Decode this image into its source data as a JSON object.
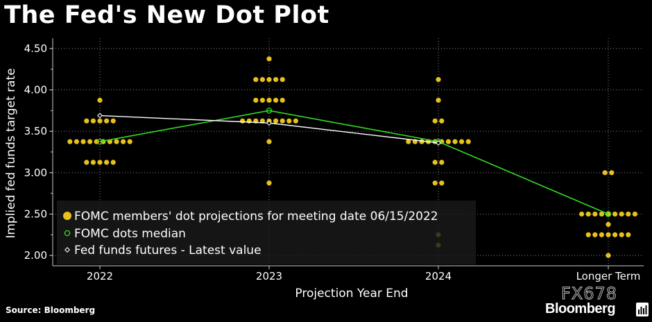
{
  "page": {
    "title": "The Fed's New Dot Plot",
    "source": "Source: Bloomberg",
    "watermark": "FX678",
    "brand": "Bloomberg",
    "brand_icon": "bloomberg-bars-icon"
  },
  "chart_data": {
    "type": "scatter",
    "title": "The Fed's New Dot Plot",
    "xlabel": "Projection Year End",
    "ylabel": "Implied fed funds target rate",
    "categories": [
      "2022",
      "2023",
      "2024",
      "Longer Term"
    ],
    "ylim": [
      1.875,
      4.625
    ],
    "yticks": [
      2.0,
      2.5,
      3.0,
      3.5,
      4.0,
      4.5
    ],
    "ytick_labels": [
      "2.00",
      "2.50",
      "3.00",
      "3.50",
      "4.00",
      "4.50"
    ],
    "grid": true,
    "legend_position": "bottom-left",
    "colors": {
      "dots": "#e8c21a",
      "dots_hidden": "#7a6a22",
      "median": "#33dd22",
      "futures": "#ffffff",
      "grid": "#888888",
      "axis": "#cccccc",
      "legend_bg": "#1a1a1a"
    },
    "series": [
      {
        "name": "FOMC members' dot projections for meeting date 06/15/2022",
        "kind": "dots",
        "points": [
          {
            "x": "2022",
            "y": 3.875,
            "count": 1
          },
          {
            "x": "2022",
            "y": 3.625,
            "count": 5
          },
          {
            "x": "2022",
            "y": 3.375,
            "count": 10
          },
          {
            "x": "2022",
            "y": 3.125,
            "count": 5
          },
          {
            "x": "2023",
            "y": 4.375,
            "count": 1
          },
          {
            "x": "2023",
            "y": 4.125,
            "count": 5
          },
          {
            "x": "2023",
            "y": 3.875,
            "count": 5
          },
          {
            "x": "2023",
            "y": 3.625,
            "count": 9
          },
          {
            "x": "2023",
            "y": 3.375,
            "count": 1
          },
          {
            "x": "2023",
            "y": 2.875,
            "count": 1
          },
          {
            "x": "2024",
            "y": 4.125,
            "count": 1
          },
          {
            "x": "2024",
            "y": 3.875,
            "count": 1
          },
          {
            "x": "2024",
            "y": 3.625,
            "count": 2
          },
          {
            "x": "2024",
            "y": 3.375,
            "count": 10
          },
          {
            "x": "2024",
            "y": 3.125,
            "count": 2
          },
          {
            "x": "2024",
            "y": 2.875,
            "count": 2
          },
          {
            "x": "2024",
            "y": 2.25,
            "count": 1
          },
          {
            "x": "2024",
            "y": 2.125,
            "count": 1
          },
          {
            "x": "Longer Term",
            "y": 3.0,
            "count": 2
          },
          {
            "x": "Longer Term",
            "y": 2.5,
            "count": 9
          },
          {
            "x": "Longer Term",
            "y": 2.375,
            "count": 1
          },
          {
            "x": "Longer Term",
            "y": 2.25,
            "count": 7
          },
          {
            "x": "Longer Term",
            "y": 2.0,
            "count": 1
          }
        ]
      },
      {
        "name": "FOMC dots median",
        "kind": "line",
        "values": [
          3.375,
          3.75,
          3.375,
          2.5
        ]
      },
      {
        "name": "Fed funds futures - Latest value",
        "kind": "line",
        "values": [
          3.69,
          3.6,
          3.36,
          null
        ]
      }
    ]
  }
}
